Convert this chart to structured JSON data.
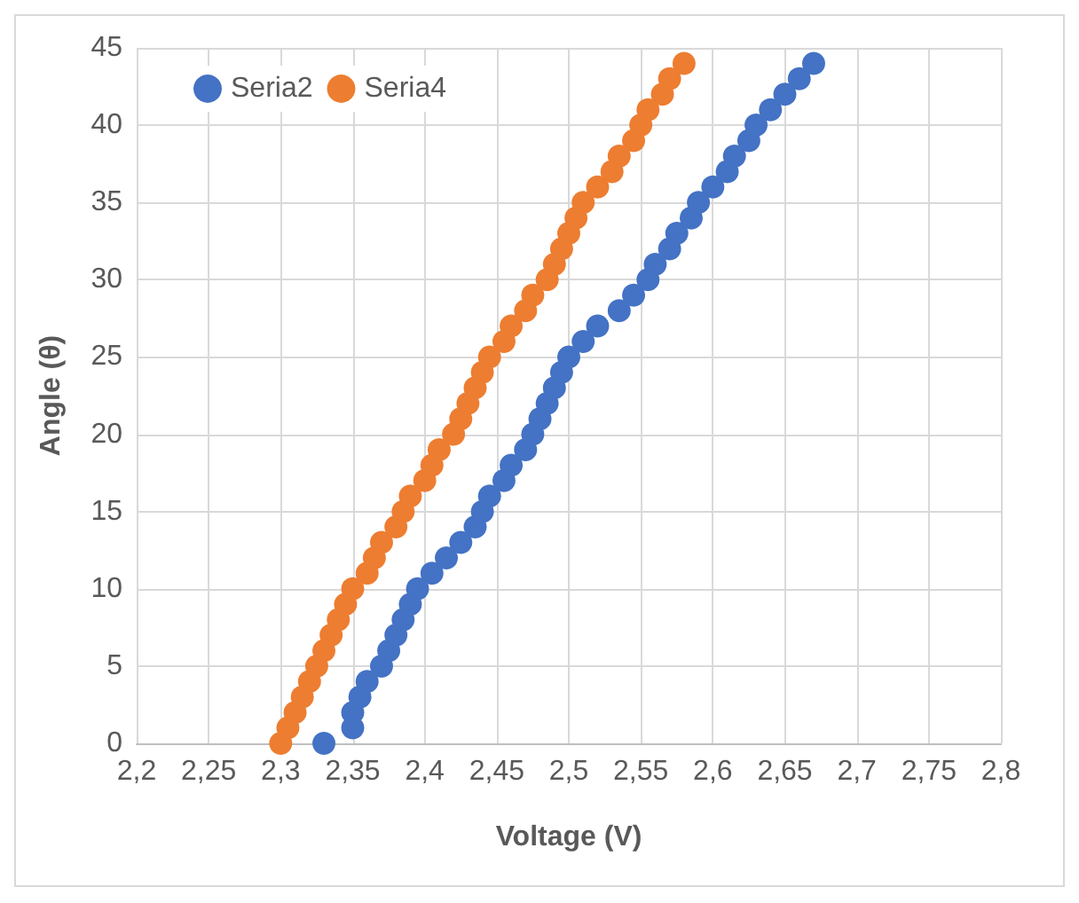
{
  "chart_data": {
    "type": "scatter",
    "xlabel": "Voltage (V)",
    "ylabel": "Angle (θ)",
    "xlim": [
      2.2,
      2.8
    ],
    "ylim": [
      0,
      45
    ],
    "xticks": [
      {
        "value": 2.2,
        "label": "2,2"
      },
      {
        "value": 2.25,
        "label": "2,25"
      },
      {
        "value": 2.3,
        "label": "2,3"
      },
      {
        "value": 2.35,
        "label": "2,35"
      },
      {
        "value": 2.4,
        "label": "2,4"
      },
      {
        "value": 2.45,
        "label": "2,45"
      },
      {
        "value": 2.5,
        "label": "2,5"
      },
      {
        "value": 2.55,
        "label": "2,55"
      },
      {
        "value": 2.6,
        "label": "2,6"
      },
      {
        "value": 2.65,
        "label": "2,65"
      },
      {
        "value": 2.7,
        "label": "2,7"
      },
      {
        "value": 2.75,
        "label": "2,75"
      },
      {
        "value": 2.8,
        "label": "2,8"
      }
    ],
    "yticks": [
      0,
      5,
      10,
      15,
      20,
      25,
      30,
      35,
      40,
      45
    ],
    "grid": true,
    "legend": "top left",
    "marker": "circle",
    "series": [
      {
        "name": "Seria2",
        "color": "#4472c4",
        "x": [
          2.33,
          2.35,
          2.35,
          2.355,
          2.36,
          2.37,
          2.375,
          2.38,
          2.385,
          2.39,
          2.395,
          2.405,
          2.415,
          2.425,
          2.435,
          2.44,
          2.445,
          2.455,
          2.46,
          2.47,
          2.475,
          2.48,
          2.485,
          2.49,
          2.495,
          2.5,
          2.51,
          2.52,
          2.535,
          2.545,
          2.555,
          2.56,
          2.57,
          2.575,
          2.585,
          2.59,
          2.6,
          2.61,
          2.615,
          2.625,
          2.63,
          2.64,
          2.65,
          2.66,
          2.67
        ],
        "values": [
          0,
          1,
          2,
          3,
          4,
          5,
          6,
          7,
          8,
          9,
          10,
          11,
          12,
          13,
          14,
          15,
          16,
          17,
          18,
          19,
          20,
          21,
          22,
          23,
          24,
          25,
          26,
          27,
          28,
          29,
          30,
          31,
          32,
          33,
          34,
          35,
          36,
          37,
          38,
          39,
          40,
          41,
          42,
          43,
          44
        ]
      },
      {
        "name": "Seria4",
        "color": "#ed7d31",
        "x": [
          2.3,
          2.305,
          2.31,
          2.315,
          2.32,
          2.325,
          2.33,
          2.335,
          2.34,
          2.345,
          2.35,
          2.36,
          2.365,
          2.37,
          2.38,
          2.385,
          2.39,
          2.4,
          2.405,
          2.41,
          2.42,
          2.425,
          2.43,
          2.435,
          2.44,
          2.445,
          2.455,
          2.46,
          2.47,
          2.475,
          2.485,
          2.49,
          2.495,
          2.5,
          2.505,
          2.51,
          2.52,
          2.53,
          2.535,
          2.545,
          2.55,
          2.555,
          2.565,
          2.57,
          2.58
        ],
        "values": [
          0,
          1,
          2,
          3,
          4,
          5,
          6,
          7,
          8,
          9,
          10,
          11,
          12,
          13,
          14,
          15,
          16,
          17,
          18,
          19,
          20,
          21,
          22,
          23,
          24,
          25,
          26,
          27,
          28,
          29,
          30,
          31,
          32,
          33,
          34,
          35,
          36,
          37,
          38,
          39,
          40,
          41,
          42,
          43,
          44
        ]
      }
    ]
  }
}
